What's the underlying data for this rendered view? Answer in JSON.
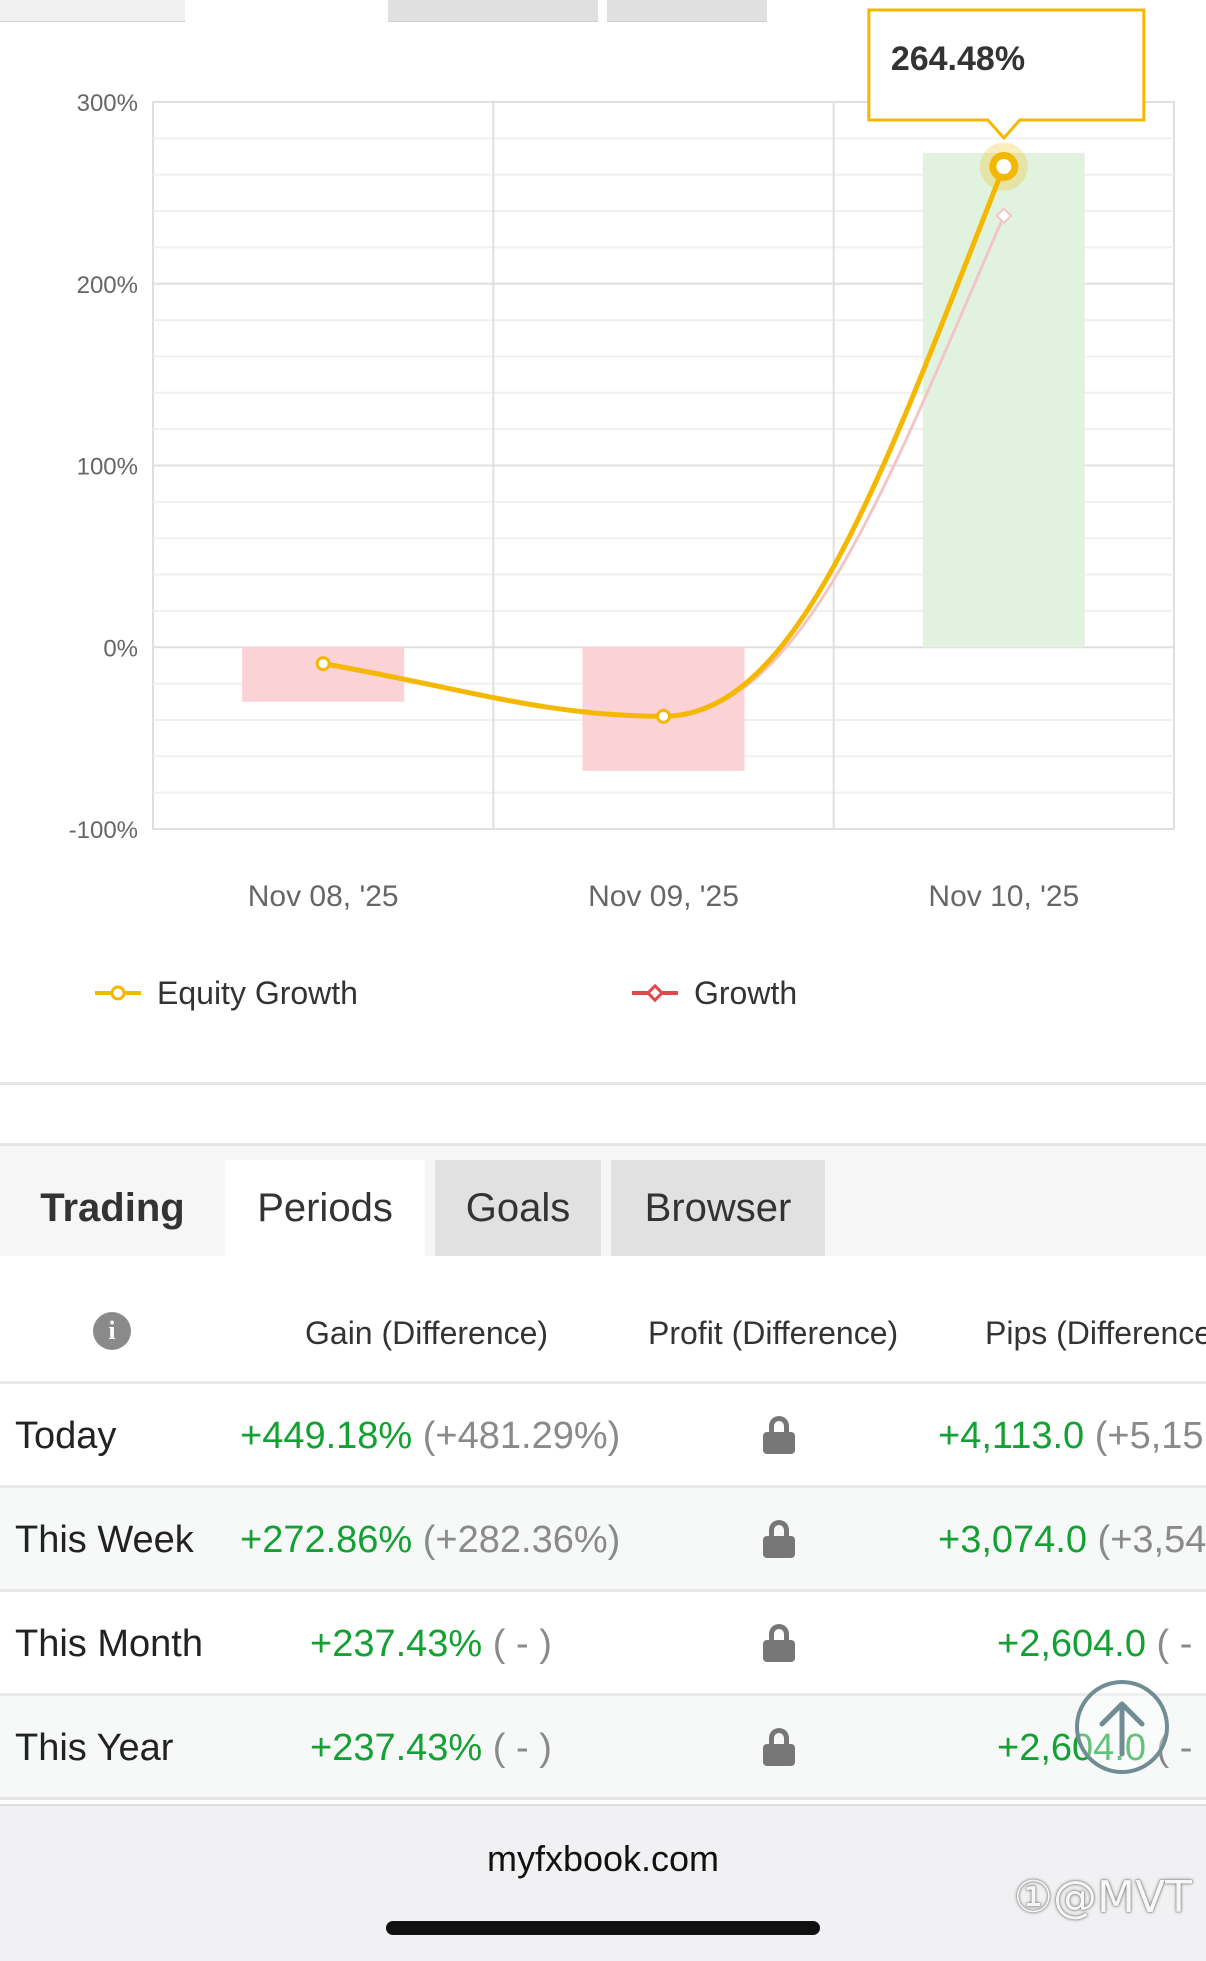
{
  "chart_data": {
    "type": "line",
    "categories": [
      "Nov 08, '25",
      "Nov 09, '25",
      "Nov 10, '25"
    ],
    "y_ticks": [
      "300%",
      "200%",
      "100%",
      "0%",
      "-100%"
    ],
    "ylim": [
      -100,
      300
    ],
    "series": [
      {
        "name": "Equity Growth",
        "values": [
          -9,
          -38,
          264.48
        ],
        "color": "#f5b800"
      },
      {
        "name": "Growth",
        "values": [
          -9,
          -38,
          237.43
        ],
        "color": "#e0484b"
      }
    ],
    "bars": [
      {
        "category": "Nov 08, '25",
        "value": -30,
        "color": "#fbd3d6"
      },
      {
        "category": "Nov 09, '25",
        "value": -68,
        "color": "#fbd3d6"
      },
      {
        "category": "Nov 10, '25",
        "value": 272,
        "color": "#e1f3df"
      }
    ],
    "tooltip": {
      "label": "264.48%"
    },
    "grid": true,
    "legend_position": "bottom"
  },
  "tabs": [
    {
      "label": "Trading"
    },
    {
      "label": "Periods"
    },
    {
      "label": "Goals"
    },
    {
      "label": "Browser"
    }
  ],
  "table": {
    "info_icon": "info-icon",
    "headers": [
      "Gain (Difference)",
      "Profit (Difference)",
      "Pips (Difference)"
    ],
    "rows": [
      {
        "label": "Today",
        "gain": "+449.18%",
        "gain_diff": "(+481.29%)",
        "pips": "+4,113.0",
        "pips_diff": "(+5,15"
      },
      {
        "label": "This Week",
        "gain": "+272.86%",
        "gain_diff": "(+282.36%)",
        "pips": "+3,074.0",
        "pips_diff": "(+3,54"
      },
      {
        "label": "This Month",
        "gain": "+237.43%",
        "gain_diff": "( - )",
        "pips": "+2,604.0",
        "pips_diff": "( -"
      },
      {
        "label": "This Year",
        "gain": "+237.43%",
        "gain_diff": "( - )",
        "pips": "+2,604.0",
        "pips_diff": "( -"
      }
    ]
  },
  "browser": {
    "url": "myfxbook.com",
    "watermark": "①@MVT"
  },
  "colors": {
    "positive": "#15a033",
    "muted": "#8a8a8a",
    "accent": "#f5b800"
  }
}
